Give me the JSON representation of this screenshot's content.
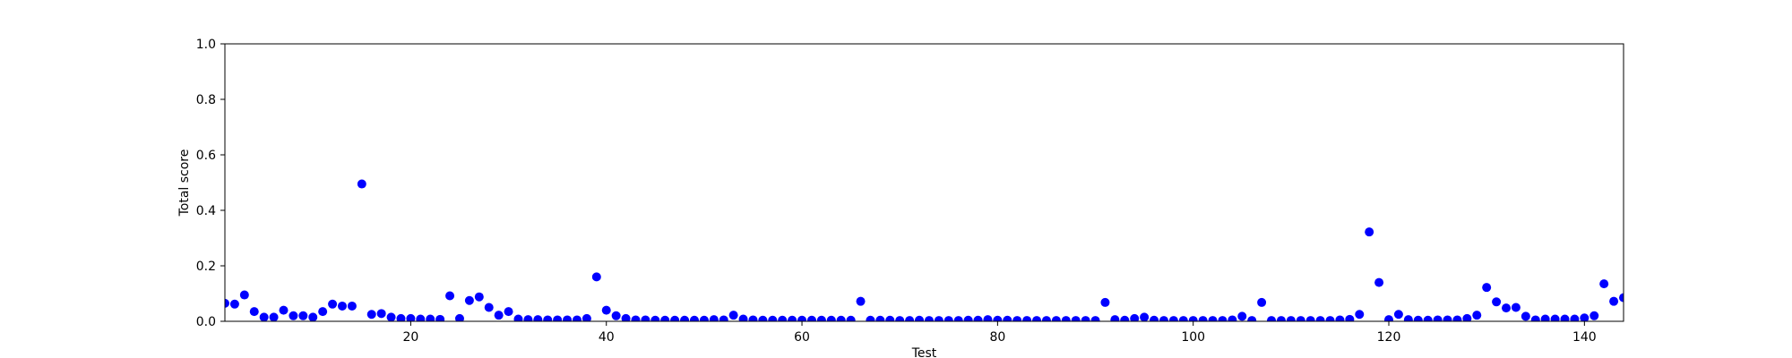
{
  "chart_data": {
    "type": "scatter",
    "title": "",
    "xlabel": "Test",
    "ylabel": "Total score",
    "xlim": [
      1,
      144
    ],
    "ylim": [
      0.0,
      1.0
    ],
    "xticks": [
      20,
      40,
      60,
      80,
      100,
      120,
      140
    ],
    "xtick_labels": [
      "20",
      "40",
      "60",
      "80",
      "100",
      "120",
      "140"
    ],
    "yticks": [
      0.0,
      0.2,
      0.4,
      0.6,
      0.8,
      1.0
    ],
    "ytick_labels": [
      "0.0",
      "0.2",
      "0.4",
      "0.6",
      "0.8",
      "1.0"
    ],
    "grid": false,
    "marker_color": "#0000ff",
    "points": [
      {
        "x": 1,
        "y": 0.065
      },
      {
        "x": 2,
        "y": 0.062
      },
      {
        "x": 3,
        "y": 0.095
      },
      {
        "x": 4,
        "y": 0.035
      },
      {
        "x": 5,
        "y": 0.015
      },
      {
        "x": 6,
        "y": 0.015
      },
      {
        "x": 7,
        "y": 0.04
      },
      {
        "x": 8,
        "y": 0.02
      },
      {
        "x": 9,
        "y": 0.02
      },
      {
        "x": 10,
        "y": 0.015
      },
      {
        "x": 11,
        "y": 0.035
      },
      {
        "x": 12,
        "y": 0.062
      },
      {
        "x": 13,
        "y": 0.055
      },
      {
        "x": 14,
        "y": 0.055
      },
      {
        "x": 15,
        "y": 0.495
      },
      {
        "x": 16,
        "y": 0.025
      },
      {
        "x": 17,
        "y": 0.028
      },
      {
        "x": 18,
        "y": 0.015
      },
      {
        "x": 19,
        "y": 0.01
      },
      {
        "x": 20,
        "y": 0.01
      },
      {
        "x": 21,
        "y": 0.008
      },
      {
        "x": 22,
        "y": 0.008
      },
      {
        "x": 23,
        "y": 0.007
      },
      {
        "x": 24,
        "y": 0.092
      },
      {
        "x": 25,
        "y": 0.01
      },
      {
        "x": 26,
        "y": 0.075
      },
      {
        "x": 27,
        "y": 0.088
      },
      {
        "x": 28,
        "y": 0.05
      },
      {
        "x": 29,
        "y": 0.022
      },
      {
        "x": 30,
        "y": 0.035
      },
      {
        "x": 31,
        "y": 0.008
      },
      {
        "x": 32,
        "y": 0.006
      },
      {
        "x": 33,
        "y": 0.006
      },
      {
        "x": 34,
        "y": 0.005
      },
      {
        "x": 35,
        "y": 0.005
      },
      {
        "x": 36,
        "y": 0.005
      },
      {
        "x": 37,
        "y": 0.005
      },
      {
        "x": 38,
        "y": 0.01
      },
      {
        "x": 39,
        "y": 0.16
      },
      {
        "x": 40,
        "y": 0.04
      },
      {
        "x": 41,
        "y": 0.02
      },
      {
        "x": 42,
        "y": 0.01
      },
      {
        "x": 43,
        "y": 0.005
      },
      {
        "x": 44,
        "y": 0.005
      },
      {
        "x": 45,
        "y": 0.004
      },
      {
        "x": 46,
        "y": 0.004
      },
      {
        "x": 47,
        "y": 0.004
      },
      {
        "x": 48,
        "y": 0.004
      },
      {
        "x": 49,
        "y": 0.004
      },
      {
        "x": 50,
        "y": 0.004
      },
      {
        "x": 51,
        "y": 0.006
      },
      {
        "x": 52,
        "y": 0.005
      },
      {
        "x": 53,
        "y": 0.022
      },
      {
        "x": 54,
        "y": 0.008
      },
      {
        "x": 55,
        "y": 0.005
      },
      {
        "x": 56,
        "y": 0.004
      },
      {
        "x": 57,
        "y": 0.004
      },
      {
        "x": 58,
        "y": 0.004
      },
      {
        "x": 59,
        "y": 0.004
      },
      {
        "x": 60,
        "y": 0.004
      },
      {
        "x": 61,
        "y": 0.004
      },
      {
        "x": 62,
        "y": 0.004
      },
      {
        "x": 63,
        "y": 0.004
      },
      {
        "x": 64,
        "y": 0.004
      },
      {
        "x": 65,
        "y": 0.004
      },
      {
        "x": 66,
        "y": 0.072
      },
      {
        "x": 67,
        "y": 0.004
      },
      {
        "x": 68,
        "y": 0.004
      },
      {
        "x": 69,
        "y": 0.004
      },
      {
        "x": 70,
        "y": 0.003
      },
      {
        "x": 71,
        "y": 0.003
      },
      {
        "x": 72,
        "y": 0.004
      },
      {
        "x": 73,
        "y": 0.003
      },
      {
        "x": 74,
        "y": 0.003
      },
      {
        "x": 75,
        "y": 0.003
      },
      {
        "x": 76,
        "y": 0.003
      },
      {
        "x": 77,
        "y": 0.004
      },
      {
        "x": 78,
        "y": 0.004
      },
      {
        "x": 79,
        "y": 0.006
      },
      {
        "x": 80,
        "y": 0.004
      },
      {
        "x": 81,
        "y": 0.004
      },
      {
        "x": 82,
        "y": 0.003
      },
      {
        "x": 83,
        "y": 0.003
      },
      {
        "x": 84,
        "y": 0.003
      },
      {
        "x": 85,
        "y": 0.003
      },
      {
        "x": 86,
        "y": 0.003
      },
      {
        "x": 87,
        "y": 0.003
      },
      {
        "x": 88,
        "y": 0.003
      },
      {
        "x": 89,
        "y": 0.003
      },
      {
        "x": 90,
        "y": 0.003
      },
      {
        "x": 91,
        "y": 0.068
      },
      {
        "x": 92,
        "y": 0.006
      },
      {
        "x": 93,
        "y": 0.004
      },
      {
        "x": 94,
        "y": 0.01
      },
      {
        "x": 95,
        "y": 0.015
      },
      {
        "x": 96,
        "y": 0.004
      },
      {
        "x": 97,
        "y": 0.003
      },
      {
        "x": 98,
        "y": 0.003
      },
      {
        "x": 99,
        "y": 0.003
      },
      {
        "x": 100,
        "y": 0.003
      },
      {
        "x": 101,
        "y": 0.003
      },
      {
        "x": 102,
        "y": 0.003
      },
      {
        "x": 103,
        "y": 0.003
      },
      {
        "x": 104,
        "y": 0.005
      },
      {
        "x": 105,
        "y": 0.018
      },
      {
        "x": 106,
        "y": 0.003
      },
      {
        "x": 107,
        "y": 0.068
      },
      {
        "x": 108,
        "y": 0.003
      },
      {
        "x": 109,
        "y": 0.003
      },
      {
        "x": 110,
        "y": 0.003
      },
      {
        "x": 111,
        "y": 0.003
      },
      {
        "x": 112,
        "y": 0.003
      },
      {
        "x": 113,
        "y": 0.003
      },
      {
        "x": 114,
        "y": 0.003
      },
      {
        "x": 115,
        "y": 0.005
      },
      {
        "x": 116,
        "y": 0.007
      },
      {
        "x": 117,
        "y": 0.025
      },
      {
        "x": 118,
        "y": 0.322
      },
      {
        "x": 119,
        "y": 0.14
      },
      {
        "x": 120,
        "y": 0.006
      },
      {
        "x": 121,
        "y": 0.025
      },
      {
        "x": 122,
        "y": 0.006
      },
      {
        "x": 123,
        "y": 0.004
      },
      {
        "x": 124,
        "y": 0.004
      },
      {
        "x": 125,
        "y": 0.005
      },
      {
        "x": 126,
        "y": 0.005
      },
      {
        "x": 127,
        "y": 0.005
      },
      {
        "x": 128,
        "y": 0.01
      },
      {
        "x": 129,
        "y": 0.022
      },
      {
        "x": 130,
        "y": 0.122
      },
      {
        "x": 131,
        "y": 0.07
      },
      {
        "x": 132,
        "y": 0.048
      },
      {
        "x": 133,
        "y": 0.05
      },
      {
        "x": 134,
        "y": 0.018
      },
      {
        "x": 135,
        "y": 0.005
      },
      {
        "x": 136,
        "y": 0.008
      },
      {
        "x": 137,
        "y": 0.008
      },
      {
        "x": 138,
        "y": 0.008
      },
      {
        "x": 139,
        "y": 0.008
      },
      {
        "x": 140,
        "y": 0.012
      },
      {
        "x": 141,
        "y": 0.02
      },
      {
        "x": 142,
        "y": 0.135
      },
      {
        "x": 143,
        "y": 0.072
      },
      {
        "x": 144,
        "y": 0.085
      }
    ]
  }
}
